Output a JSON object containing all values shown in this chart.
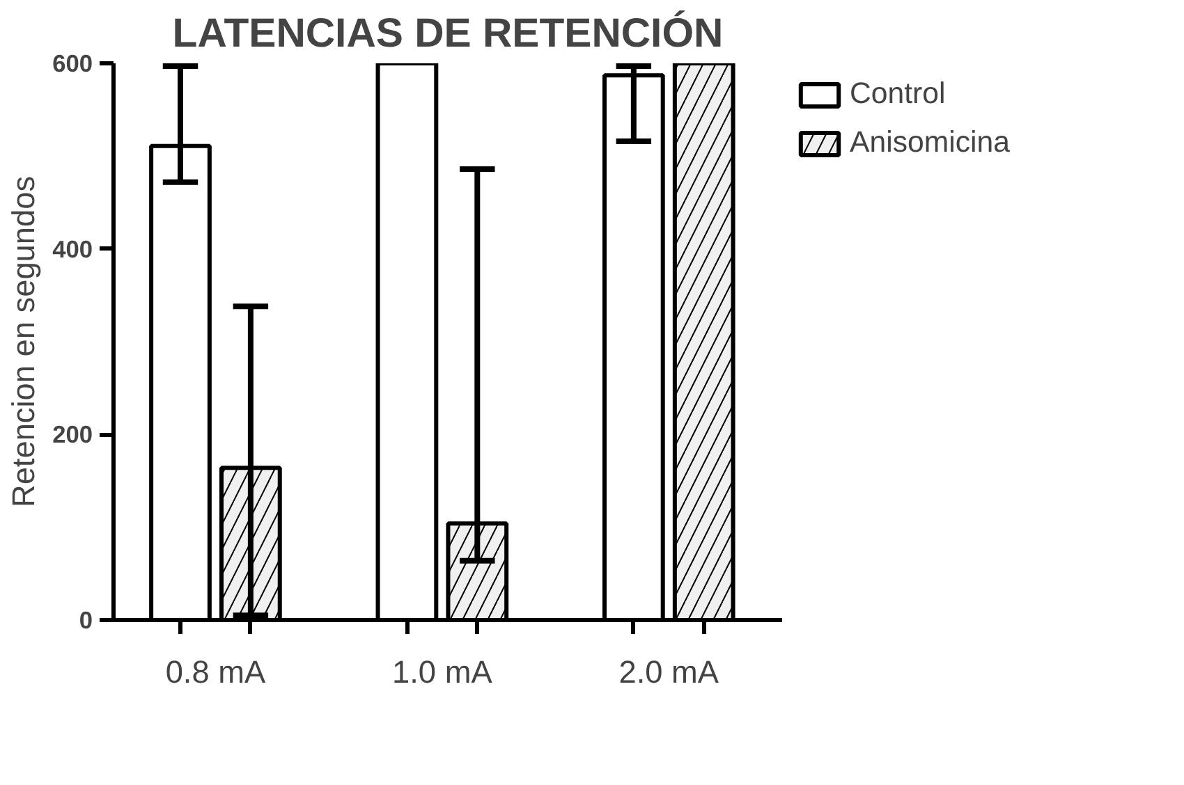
{
  "chart_data": {
    "type": "bar",
    "title": "LATENCIAS DE RETENCIÓN",
    "ylabel": "Retencion en segundos",
    "categories": [
      "0.8 mA",
      "1.0 mA",
      "2.0 mA"
    ],
    "series": [
      {
        "name": "Control",
        "color": "#ffffff",
        "values": [
          511,
          600,
          587
        ],
        "errors": [
          [
            472,
            597
          ],
          null,
          [
            516,
            597
          ]
        ]
      },
      {
        "name": "Anisomicina",
        "color": "#f0f0f0",
        "values": [
          164,
          104,
          600
        ],
        "errors": [
          [
            5,
            338
          ],
          [
            64,
            486
          ],
          null
        ]
      }
    ],
    "ylim": [
      0,
      600
    ],
    "yticks": [
      0,
      200,
      400,
      600
    ],
    "grid": false,
    "legend": "top right"
  }
}
